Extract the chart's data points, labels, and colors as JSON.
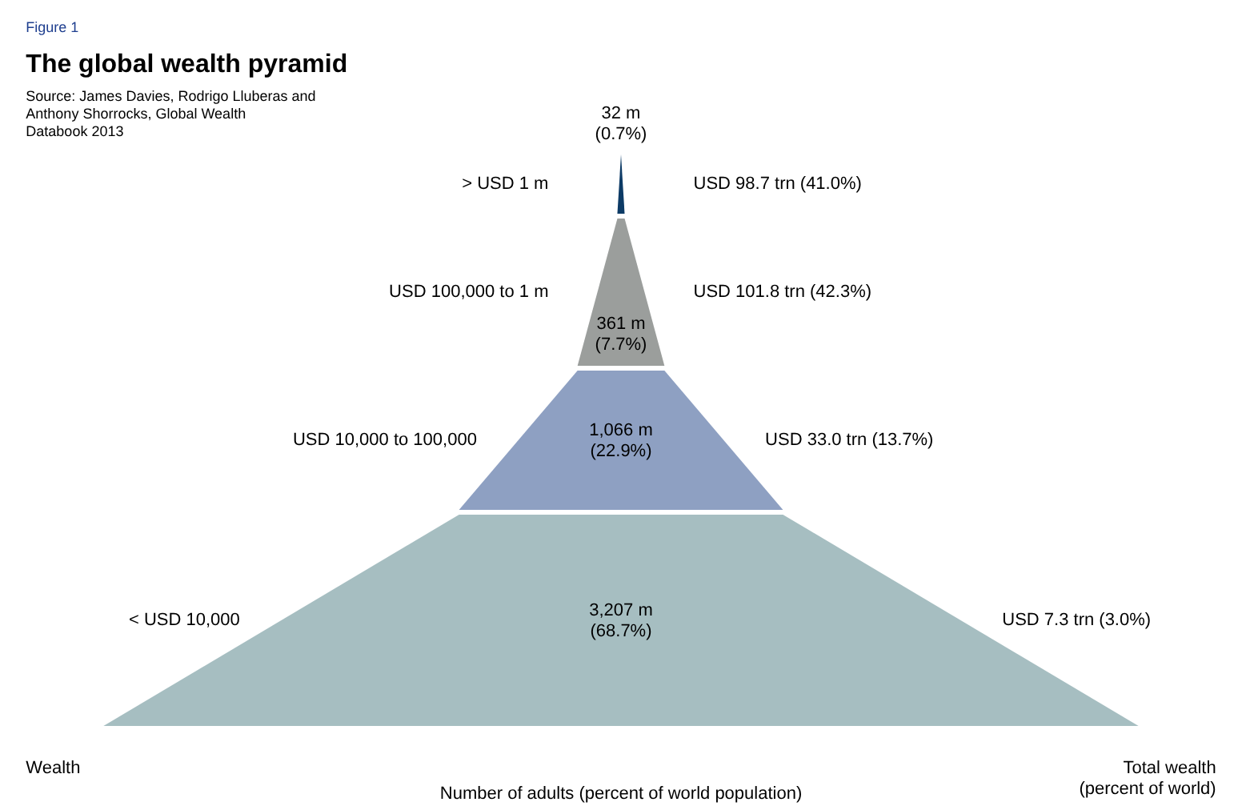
{
  "chart_data": {
    "type": "other",
    "title": "The global wealth pyramid",
    "xlabel": "Number of adults (percent of world population)",
    "ylabel": "Wealth",
    "y2label": "Total wealth\n(percent of world)",
    "categories": [
      "> USD 1 m",
      "USD 100,000 to 1 m",
      "USD 10,000 to 100,000",
      "< USD 10,000"
    ],
    "series": [
      {
        "colors": [
          "#0d3b66",
          "#9b9e9c",
          "#8ea0c2",
          "#a6bec1"
        ],
        "values": [
          0.7,
          7.7,
          22.9,
          68.7
        ],
        "value_labels": [
          "32 m\n(0.7%)",
          "361 m\n(7.7%)",
          "1,066 m\n(22.9%)",
          "3,207 m\n(68.7%)"
        ]
      },
      {
        "values": [
          41.0,
          42.3,
          13.7,
          3.0
        ],
        "value_labels": [
          "USD 98.7 trn (41.0%)",
          "USD 101.8 trn (42.3%)",
          "USD 33.0 trn (13.7%)",
          "USD 7.3 trn (3.0%)"
        ]
      }
    ],
    "annotations": [
      "Figure 1",
      "Source: James Davies, Rodrigo Lluberas and\nAnthony Shorrocks, Global Wealth\nDatabook 2013"
    ]
  }
}
